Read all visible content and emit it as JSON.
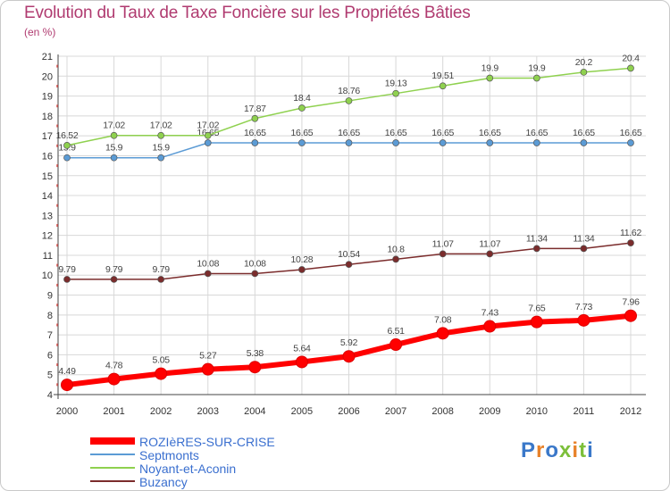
{
  "title": "Evolution du Taux de Taxe Foncière sur les Propriétés Bâties",
  "unit_label": "(en %)",
  "logo": "Proxiti",
  "colors": {
    "title": "#b03b70",
    "legend_text": "#3a6fcf",
    "grid": "#d8d8d8",
    "axis": "#444444",
    "tick_dots": "#d9534f"
  },
  "chart_data": {
    "type": "line",
    "title": "Evolution du Taux de Taxe Foncière sur les Propriétés Bâties",
    "ylabel": "(en %)",
    "xlabel": "",
    "x": [
      "2000",
      "2001",
      "2002",
      "2003",
      "2004",
      "2005",
      "2006",
      "2007",
      "2008",
      "2009",
      "2010",
      "2011",
      "2012"
    ],
    "ylim": [
      4,
      21
    ],
    "yticks": [
      4,
      5,
      6,
      7,
      8,
      9,
      10,
      11,
      12,
      13,
      14,
      15,
      16,
      17,
      18,
      19,
      20,
      21
    ],
    "grid": true,
    "legend_position": "bottom-left",
    "series": [
      {
        "name": "ROZIèRES-SUR-CRISE",
        "color": "#ff0000",
        "values": [
          4.49,
          4.78,
          5.05,
          5.27,
          5.38,
          5.64,
          5.92,
          6.51,
          7.08,
          7.43,
          7.65,
          7.73,
          7.96
        ],
        "labels": [
          "4.49",
          "4.78",
          "5.05",
          "5.27",
          "5.38",
          "5.64",
          "5.92",
          "6.51",
          "7.08",
          "7.43",
          "7.65",
          "7.73",
          "7.96"
        ]
      },
      {
        "name": "Septmonts",
        "color": "#5b9bd5",
        "values": [
          15.9,
          15.9,
          15.9,
          16.65,
          16.65,
          16.65,
          16.65,
          16.65,
          16.65,
          16.65,
          16.65,
          16.65,
          16.65
        ],
        "labels": [
          "15.9",
          "15.9",
          "15.9",
          "16.65",
          "16.65",
          "16.65",
          "16.65",
          "16.65",
          "16.65",
          "16.65",
          "16.65",
          "16.65",
          "16.65"
        ]
      },
      {
        "name": "Noyant-et-Aconin",
        "color": "#8fd14f",
        "values": [
          16.52,
          17.02,
          17.02,
          17.02,
          17.87,
          18.4,
          18.76,
          19.13,
          19.51,
          19.9,
          19.9,
          20.2,
          20.4
        ],
        "labels": [
          "16.52",
          "17.02",
          "17.02",
          "17.02",
          "17.87",
          "18.4",
          "18.76",
          "19.13",
          "19.51",
          "19.9",
          "19.9",
          "20.2",
          "20.4"
        ]
      },
      {
        "name": "Buzancy",
        "color": "#7b2c2c",
        "values": [
          9.79,
          9.79,
          9.79,
          10.08,
          10.08,
          10.28,
          10.54,
          10.8,
          11.07,
          11.07,
          11.34,
          11.34,
          11.62
        ],
        "labels": [
          "9.79",
          "9.79",
          "9.79",
          "10.08",
          "10.08",
          "10.28",
          "10.54",
          "10.8",
          "11.07",
          "11.07",
          "11.34",
          "11.34",
          "11.62"
        ]
      }
    ]
  }
}
